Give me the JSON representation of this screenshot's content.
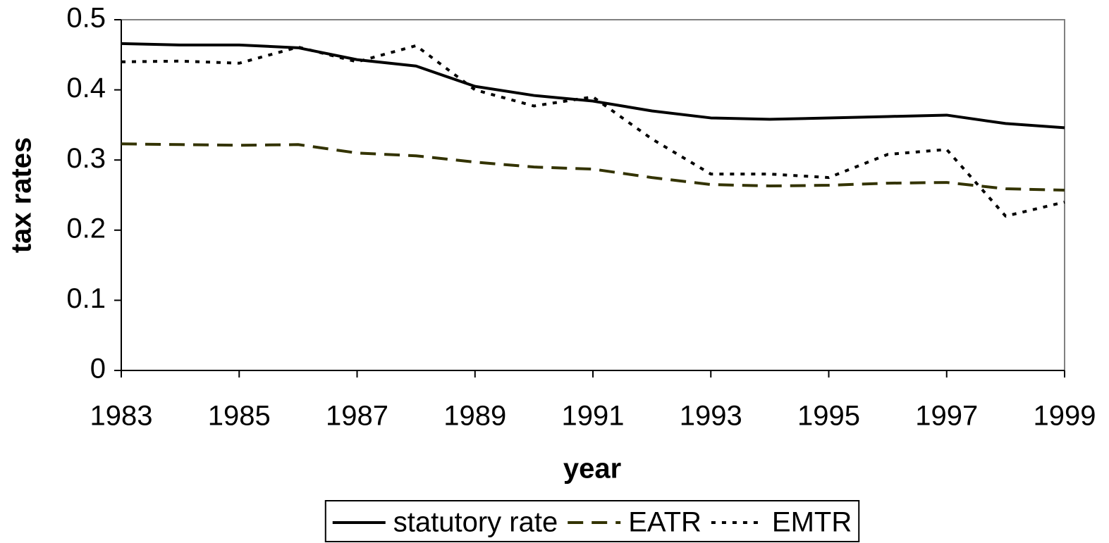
{
  "chart_data": {
    "type": "line",
    "x_label": "year",
    "y_label": "tax rates",
    "x": [
      1983,
      1984,
      1985,
      1986,
      1987,
      1988,
      1989,
      1990,
      1991,
      1992,
      1993,
      1994,
      1995,
      1996,
      1997,
      1998,
      1999
    ],
    "series": [
      {
        "name": "statutory rate",
        "color": "#000000",
        "dash": "solid",
        "values": [
          0.466,
          0.464,
          0.464,
          0.46,
          0.443,
          0.434,
          0.405,
          0.392,
          0.384,
          0.37,
          0.36,
          0.358,
          0.36,
          0.362,
          0.364,
          0.352,
          0.346
        ]
      },
      {
        "name": "EATR",
        "color": "#333300",
        "dash": "dashed",
        "values": [
          0.323,
          0.322,
          0.321,
          0.322,
          0.31,
          0.306,
          0.297,
          0.29,
          0.287,
          0.275,
          0.265,
          0.263,
          0.264,
          0.267,
          0.268,
          0.259,
          0.257
        ]
      },
      {
        "name": "EMTR",
        "color": "#000000",
        "dash": "dotted",
        "values": [
          0.44,
          0.441,
          0.438,
          0.461,
          0.44,
          0.463,
          0.4,
          0.377,
          0.39,
          0.33,
          0.28,
          0.28,
          0.275,
          0.308,
          0.315,
          0.22,
          0.24
        ]
      }
    ],
    "xlim": [
      1983,
      1999
    ],
    "xticks": [
      1983,
      1985,
      1987,
      1989,
      1991,
      1993,
      1995,
      1997,
      1999
    ],
    "ylim": [
      0,
      0.5
    ],
    "yticks": [
      0,
      0.1,
      0.2,
      0.3,
      0.4,
      0.5
    ],
    "grid": false,
    "legend": "bottom"
  }
}
